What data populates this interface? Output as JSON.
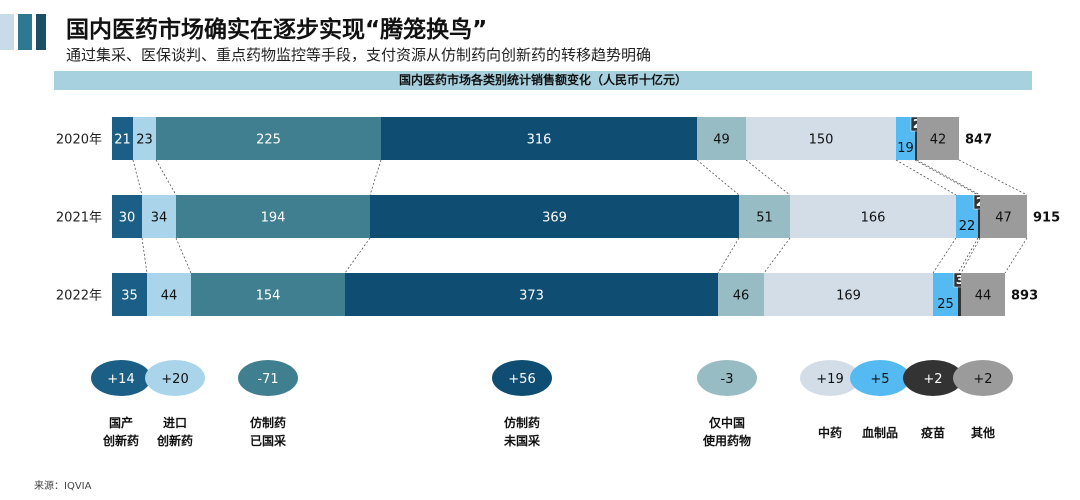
{
  "header": {
    "title": "国内医药市场确实在逐步实现“腾笼换鸟”",
    "subtitle": "通过集采、医保谈判、重点药物监控等手段，支付资源从仿制药向创新药的转移趋势明确"
  },
  "chart_data": {
    "type": "bar",
    "orientation": "horizontal",
    "stacked": true,
    "title": "国内医药市场各类别统计销售额变化（人民币十亿元）",
    "categories": [
      "2020年",
      "2021年",
      "2022年"
    ],
    "series": [
      {
        "name": "国产创新药",
        "color": "#1c5f86",
        "text_color": "#ffffff",
        "values": [
          21,
          30,
          35
        ],
        "change": "+14",
        "legend_lines": [
          "国产",
          "创新药"
        ]
      },
      {
        "name": "进口创新药",
        "color": "#a9d4ea",
        "text_color": "#111111",
        "values": [
          23,
          34,
          44
        ],
        "change": "+20",
        "legend_lines": [
          "进口",
          "创新药"
        ]
      },
      {
        "name": "仿制药已国采",
        "color": "#3f7f8f",
        "text_color": "#ffffff",
        "values": [
          225,
          194,
          154
        ],
        "change": "-71",
        "legend_lines": [
          "仿制药",
          "已国采"
        ]
      },
      {
        "name": "仿制药未国采",
        "color": "#0f4d73",
        "text_color": "#ffffff",
        "values": [
          316,
          369,
          373
        ],
        "change": "+56",
        "legend_lines": [
          "仿制药",
          "未国采"
        ]
      },
      {
        "name": "仅中国使用药物",
        "color": "#97bcc3",
        "text_color": "#111111",
        "values": [
          49,
          51,
          46
        ],
        "change": "-3",
        "legend_lines": [
          "仅中国",
          "使用药物"
        ]
      },
      {
        "name": "中药",
        "color": "#d2dde8",
        "text_color": "#111111",
        "values": [
          150,
          166,
          169
        ],
        "change": "+19",
        "legend_lines": [
          "中药"
        ]
      },
      {
        "name": "血制品",
        "color": "#55baf2",
        "text_color": "#111111",
        "values": [
          19,
          22,
          25
        ],
        "change": "+5",
        "legend_lines": [
          "血制品"
        ]
      },
      {
        "name": "疫苗",
        "color": "#333333",
        "text_color": "#ffffff",
        "values": [
          2,
          2,
          3
        ],
        "change": "+2",
        "legend_lines": [
          "疫苗"
        ]
      },
      {
        "name": "其他",
        "color": "#9b9b9b",
        "text_color": "#111111",
        "values": [
          42,
          47,
          44
        ],
        "change": "+2",
        "legend_lines": [
          "其他"
        ]
      }
    ],
    "totals": [
      847,
      915,
      893
    ]
  },
  "footer": {
    "source": "来源：IQVIA"
  }
}
